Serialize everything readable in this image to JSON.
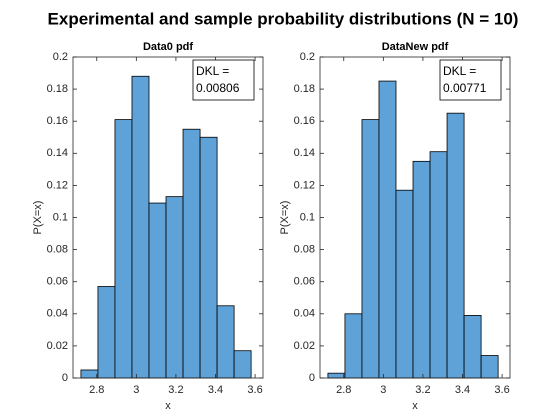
{
  "title": "Experimental and sample probability distributions (N = 10)",
  "chart_data": [
    {
      "type": "histogram",
      "title": "Data0 pdf",
      "x_label": "x",
      "y_label": "P(X=x)",
      "annotation": [
        "DKL =",
        "0.00806"
      ],
      "bins": [
        2.72,
        2.806,
        2.892,
        2.978,
        3.064,
        3.15,
        3.236,
        3.322,
        3.408,
        3.494,
        3.58
      ],
      "values": [
        0.005,
        0.057,
        0.161,
        0.188,
        0.109,
        0.113,
        0.155,
        0.15,
        0.045,
        0.017
      ],
      "color": "#5fa2d8",
      "xlim": [
        2.68,
        3.64
      ],
      "xticks": [
        2.8,
        3,
        3.2,
        3.4,
        3.6
      ],
      "ylim": [
        0,
        0.2
      ],
      "yticks": [
        0,
        0.02,
        0.04,
        0.06,
        0.08,
        0.1,
        0.12,
        0.14,
        0.16,
        0.18,
        0.2
      ]
    },
    {
      "type": "histogram",
      "title": "DataNew pdf",
      "x_label": "x",
      "y_label": "P(X=x)",
      "annotation": [
        "DKL =",
        "0.00771"
      ],
      "bins": [
        2.72,
        2.806,
        2.892,
        2.978,
        3.064,
        3.15,
        3.236,
        3.322,
        3.408,
        3.494,
        3.58
      ],
      "values": [
        0.003,
        0.04,
        0.161,
        0.185,
        0.117,
        0.135,
        0.141,
        0.165,
        0.039,
        0.014
      ],
      "color": "#5fa2d8",
      "xlim": [
        2.68,
        3.64
      ],
      "xticks": [
        2.8,
        3,
        3.2,
        3.4,
        3.6
      ],
      "ylim": [
        0,
        0.2
      ],
      "yticks": [
        0,
        0.02,
        0.04,
        0.06,
        0.08,
        0.1,
        0.12,
        0.14,
        0.16,
        0.18,
        0.2
      ]
    }
  ]
}
